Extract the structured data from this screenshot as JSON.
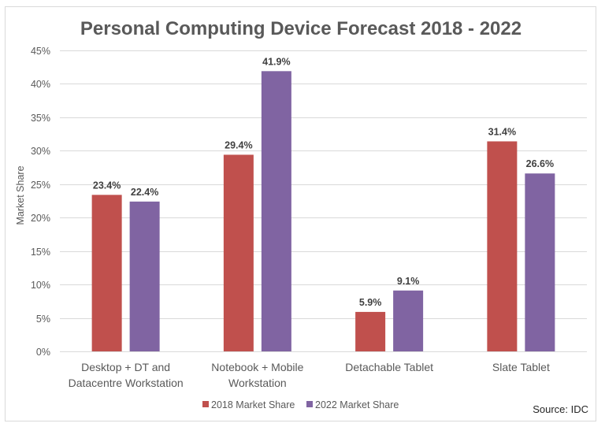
{
  "chart_data": {
    "type": "bar",
    "title": "Personal Computing Device Forecast 2018 - 2022",
    "xlabel": "",
    "ylabel": "Market Share",
    "ylim": [
      0,
      45
    ],
    "y_ticks": [
      "0%",
      "5%",
      "10%",
      "15%",
      "20%",
      "25%",
      "30%",
      "35%",
      "40%",
      "45%"
    ],
    "y_tick_values": [
      0,
      5,
      10,
      15,
      20,
      25,
      30,
      35,
      40,
      45
    ],
    "grid": true,
    "categories": [
      [
        "Desktop + DT and",
        "Datacentre Workstation"
      ],
      [
        "Notebook + Mobile",
        "Workstation"
      ],
      [
        "Detachable Tablet"
      ],
      [
        "Slate Tablet"
      ]
    ],
    "series": [
      {
        "name": "2018 Market Share",
        "color": "#C0504D",
        "values": [
          23.4,
          29.4,
          5.9,
          31.4
        ],
        "labels": [
          "23.4%",
          "29.4%",
          "5.9%",
          "31.4%"
        ]
      },
      {
        "name": "2022 Market Share",
        "color": "#8064A2",
        "values": [
          22.4,
          41.9,
          9.1,
          26.6
        ],
        "labels": [
          "22.4%",
          "41.9%",
          "9.1%",
          "26.6%"
        ]
      }
    ],
    "legend_position": "bottom",
    "annotation": "Source: IDC"
  }
}
